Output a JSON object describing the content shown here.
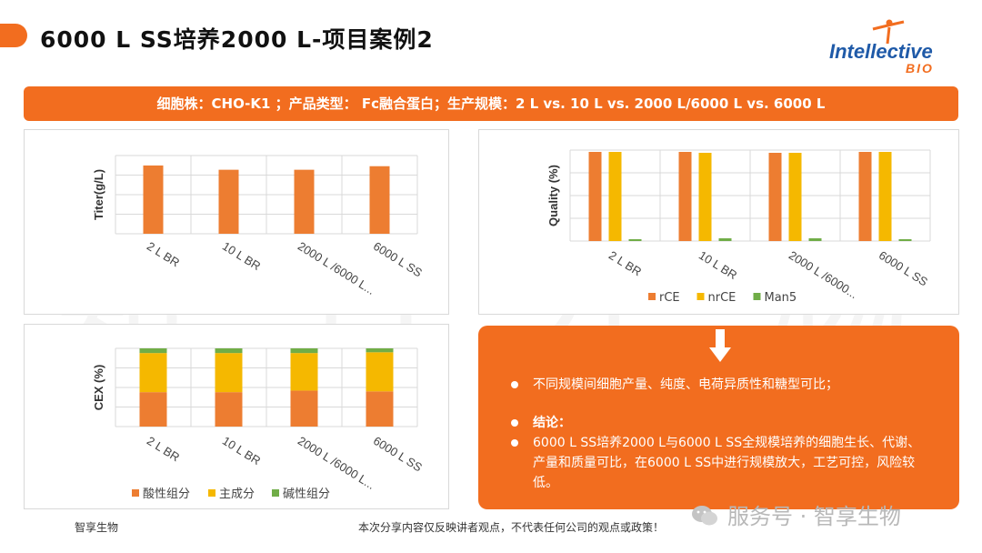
{
  "header": {
    "title": "6000 L SS培养2000 L-项目案例2",
    "logo_main": "Intellective",
    "logo_sub": "BIO"
  },
  "banner": {
    "text": "细胞株：CHO-K1 ；产品类型： Fc融合蛋白；生产规模：2 L vs. 10 L vs. 2000 L/6000 L vs. 6000 L"
  },
  "watermark": {
    "chars": [
      "智",
      "享",
      "生",
      "物"
    ]
  },
  "colors": {
    "accent": "#f26d1f",
    "orange_bar": "#ed7d31",
    "yellow_bar": "#f5b800",
    "green_bar": "#70ad47"
  },
  "chart_data": [
    {
      "type": "bar",
      "ylabel": "Titer(g/L)",
      "categories": [
        "2 L BR",
        "10 L BR",
        "2000 L /6000 L...",
        "6000 L SS"
      ],
      "values": [
        0.96,
        0.9,
        0.9,
        0.95
      ],
      "ylim": [
        0,
        1.1
      ],
      "grid": true
    },
    {
      "type": "bar",
      "ylabel": "Quality (%)",
      "categories": [
        "2 L BR",
        "10 L BR",
        "2000 L /6000...",
        "6000 L SS"
      ],
      "series": [
        {
          "name": "rCE",
          "values": [
            98,
            98,
            97,
            98
          ]
        },
        {
          "name": "nrCE",
          "values": [
            98,
            97,
            97,
            98
          ]
        },
        {
          "name": "Man5",
          "values": [
            2,
            3,
            3,
            2
          ]
        }
      ],
      "ylim": [
        0,
        100
      ],
      "legend": "bottom",
      "grid": true
    },
    {
      "type": "bar",
      "stacked": true,
      "ylabel": "CEX (%)",
      "categories": [
        "2 L BR",
        "10 L BR",
        "2000 L /6000 L...",
        "6000 L SS"
      ],
      "series": [
        {
          "name": "酸性组分",
          "values": [
            44,
            44,
            46,
            45
          ]
        },
        {
          "name": "主成分",
          "values": [
            50,
            50,
            48,
            50
          ]
        },
        {
          "name": "碱性组分",
          "values": [
            6,
            6,
            6,
            5
          ]
        }
      ],
      "ylim": [
        0,
        100
      ],
      "legend": "bottom",
      "grid": true
    }
  ],
  "summary": {
    "point1": "不同规模间细胞产量、纯度、电荷异质性和糖型可比；",
    "conclusion_label": "结论：",
    "point2": "6000 L SS培养2000 L与6000 L SS全规模培养的细胞生长、代谢、产量和质量可比，在6000 L SS中进行规模放大，工艺可控，风险较低。"
  },
  "footer": {
    "left": "智享生物",
    "disclaimer": "本次分享内容仅反映讲者观点，不代表任何公司的观点或政策！",
    "wechat": "服务号 · 智享生物"
  }
}
